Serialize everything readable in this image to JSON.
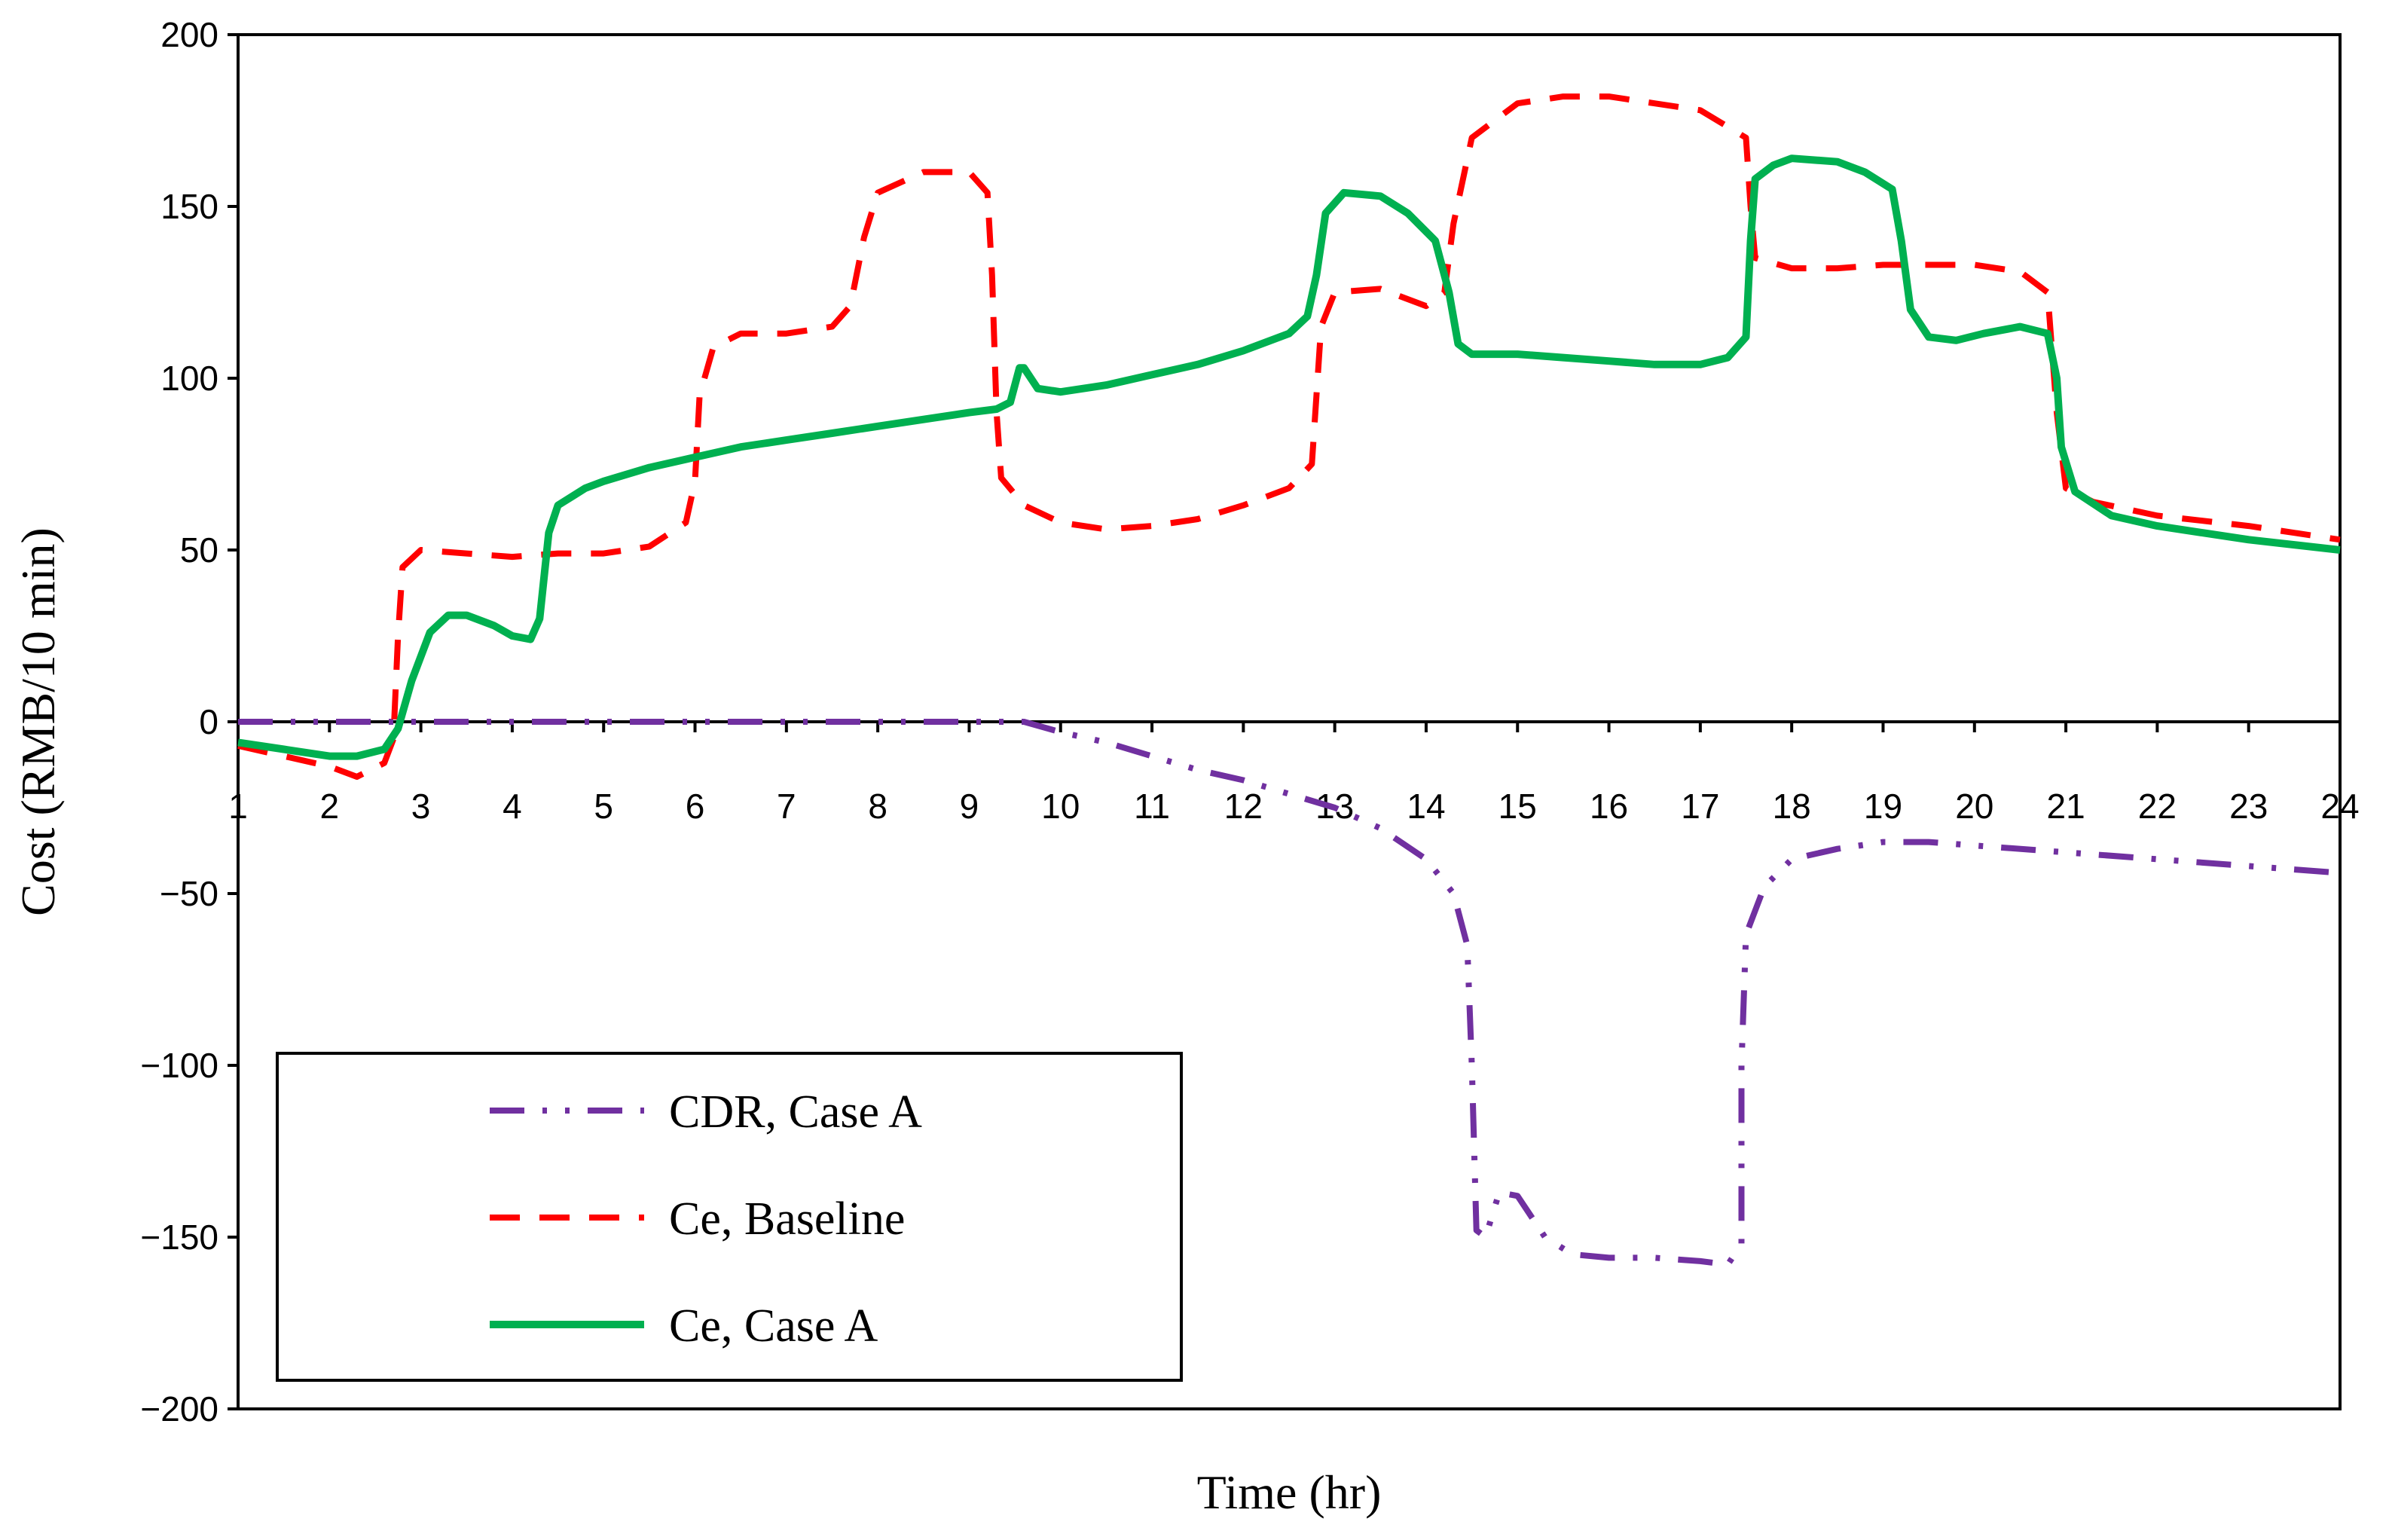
{
  "chart_data": {
    "type": "line",
    "title": "",
    "xlabel": "Time (hr)",
    "ylabel": "Cost (RMB/10 min)",
    "xlim": [
      1,
      24
    ],
    "ylim": [
      -200,
      200
    ],
    "xticks": [
      1,
      2,
      3,
      4,
      5,
      6,
      7,
      8,
      9,
      10,
      11,
      12,
      13,
      14,
      15,
      16,
      17,
      18,
      19,
      20,
      21,
      22,
      23,
      24
    ],
    "yticks": [
      -200,
      -150,
      -100,
      -50,
      0,
      50,
      100,
      150,
      200
    ],
    "ytick_labels": [
      "−200",
      "−150",
      "−100",
      "−50",
      "0",
      "50",
      "100",
      "150",
      "200"
    ],
    "grid": false,
    "legend_position": "bottom-left",
    "series": [
      {
        "name": "CDR, Case A",
        "color": "#7030A0",
        "style": "dash-dot-dot",
        "points": [
          [
            1,
            0
          ],
          [
            9.6,
            0
          ],
          [
            10,
            -3
          ],
          [
            10.5,
            -6
          ],
          [
            11,
            -10
          ],
          [
            11.5,
            -14
          ],
          [
            12,
            -17
          ],
          [
            12.5,
            -21
          ],
          [
            13,
            -25
          ],
          [
            13.5,
            -31
          ],
          [
            14,
            -40
          ],
          [
            14.3,
            -50
          ],
          [
            14.45,
            -65
          ],
          [
            14.5,
            -100
          ],
          [
            14.55,
            -148
          ],
          [
            14.65,
            -150
          ],
          [
            14.8,
            -137
          ],
          [
            15,
            -138
          ],
          [
            15.3,
            -150
          ],
          [
            15.6,
            -155
          ],
          [
            16,
            -156
          ],
          [
            16.5,
            -156
          ],
          [
            17,
            -157
          ],
          [
            17.3,
            -158
          ],
          [
            17.45,
            -152
          ],
          [
            17.45,
            -100
          ],
          [
            17.5,
            -62
          ],
          [
            17.7,
            -48
          ],
          [
            18,
            -40
          ],
          [
            18.5,
            -37
          ],
          [
            19,
            -35
          ],
          [
            19.5,
            -35
          ],
          [
            20,
            -36
          ],
          [
            21,
            -38
          ],
          [
            22,
            -40
          ],
          [
            23,
            -42
          ],
          [
            24,
            -44
          ]
        ]
      },
      {
        "name": "Ce, Baseline",
        "color": "#FF0000",
        "style": "dashed",
        "points": [
          [
            1,
            -7
          ],
          [
            1.5,
            -10
          ],
          [
            2,
            -13
          ],
          [
            2.3,
            -16
          ],
          [
            2.6,
            -12
          ],
          [
            2.7,
            -5
          ],
          [
            2.75,
            25
          ],
          [
            2.8,
            45
          ],
          [
            3,
            50
          ],
          [
            3.5,
            49
          ],
          [
            4,
            48
          ],
          [
            4.5,
            49
          ],
          [
            5,
            49
          ],
          [
            5.5,
            51
          ],
          [
            5.9,
            58
          ],
          [
            6,
            70
          ],
          [
            6.05,
            95
          ],
          [
            6.2,
            109
          ],
          [
            6.5,
            113
          ],
          [
            7,
            113
          ],
          [
            7.5,
            115
          ],
          [
            7.7,
            121
          ],
          [
            7.85,
            141
          ],
          [
            8,
            154
          ],
          [
            8.5,
            160
          ],
          [
            9,
            160
          ],
          [
            9.2,
            154
          ],
          [
            9.25,
            130
          ],
          [
            9.3,
            90
          ],
          [
            9.35,
            71
          ],
          [
            9.6,
            63
          ],
          [
            10,
            58
          ],
          [
            10.5,
            56
          ],
          [
            11,
            57
          ],
          [
            11.5,
            59
          ],
          [
            12,
            63
          ],
          [
            12.5,
            68
          ],
          [
            12.75,
            75
          ],
          [
            12.8,
            95
          ],
          [
            12.85,
            115
          ],
          [
            13,
            125
          ],
          [
            13.5,
            126
          ],
          [
            14,
            121
          ],
          [
            14.2,
            125
          ],
          [
            14.3,
            145
          ],
          [
            14.5,
            170
          ],
          [
            15,
            180
          ],
          [
            15.5,
            182
          ],
          [
            16,
            182
          ],
          [
            16.5,
            180
          ],
          [
            17,
            178
          ],
          [
            17.5,
            170
          ],
          [
            17.55,
            150
          ],
          [
            17.6,
            135
          ],
          [
            18,
            132
          ],
          [
            18.5,
            132
          ],
          [
            19,
            133
          ],
          [
            19.5,
            133
          ],
          [
            20,
            133
          ],
          [
            20.5,
            131
          ],
          [
            20.8,
            125
          ],
          [
            20.9,
            90
          ],
          [
            21,
            68
          ],
          [
            21.3,
            64
          ],
          [
            22,
            60
          ],
          [
            23,
            57
          ],
          [
            24,
            53
          ]
        ]
      },
      {
        "name": "Ce, Case A",
        "color": "#00B050",
        "style": "solid",
        "points": [
          [
            1,
            -6
          ],
          [
            1.5,
            -8
          ],
          [
            2,
            -10
          ],
          [
            2.3,
            -10
          ],
          [
            2.6,
            -8
          ],
          [
            2.75,
            -2
          ],
          [
            2.9,
            12
          ],
          [
            3.1,
            26
          ],
          [
            3.3,
            31
          ],
          [
            3.5,
            31
          ],
          [
            3.8,
            28
          ],
          [
            4,
            25
          ],
          [
            4.2,
            24
          ],
          [
            4.3,
            30
          ],
          [
            4.4,
            55
          ],
          [
            4.5,
            63
          ],
          [
            4.8,
            68
          ],
          [
            5,
            70
          ],
          [
            5.5,
            74
          ],
          [
            6,
            77
          ],
          [
            6.5,
            80
          ],
          [
            7,
            82
          ],
          [
            7.5,
            84
          ],
          [
            8,
            86
          ],
          [
            8.5,
            88
          ],
          [
            9,
            90
          ],
          [
            9.3,
            91
          ],
          [
            9.45,
            93
          ],
          [
            9.55,
            103
          ],
          [
            9.6,
            103
          ],
          [
            9.75,
            97
          ],
          [
            10,
            96
          ],
          [
            10.5,
            98
          ],
          [
            11,
            101
          ],
          [
            11.5,
            104
          ],
          [
            12,
            108
          ],
          [
            12.5,
            113
          ],
          [
            12.7,
            118
          ],
          [
            12.8,
            130
          ],
          [
            12.9,
            148
          ],
          [
            13.1,
            154
          ],
          [
            13.5,
            153
          ],
          [
            13.8,
            148
          ],
          [
            14.1,
            140
          ],
          [
            14.25,
            125
          ],
          [
            14.35,
            110
          ],
          [
            14.5,
            107
          ],
          [
            15,
            107
          ],
          [
            15.5,
            106
          ],
          [
            16,
            105
          ],
          [
            16.5,
            104
          ],
          [
            17,
            104
          ],
          [
            17.3,
            106
          ],
          [
            17.5,
            112
          ],
          [
            17.55,
            140
          ],
          [
            17.6,
            158
          ],
          [
            17.8,
            162
          ],
          [
            18,
            164
          ],
          [
            18.5,
            163
          ],
          [
            18.8,
            160
          ],
          [
            19.1,
            155
          ],
          [
            19.2,
            140
          ],
          [
            19.3,
            120
          ],
          [
            19.5,
            112
          ],
          [
            19.8,
            111
          ],
          [
            20.1,
            113
          ],
          [
            20.5,
            115
          ],
          [
            20.8,
            113
          ],
          [
            20.9,
            100
          ],
          [
            20.95,
            80
          ],
          [
            21.1,
            67
          ],
          [
            21.5,
            60
          ],
          [
            22,
            57
          ],
          [
            22.5,
            55
          ],
          [
            23,
            53
          ],
          [
            24,
            50
          ]
        ]
      }
    ]
  }
}
